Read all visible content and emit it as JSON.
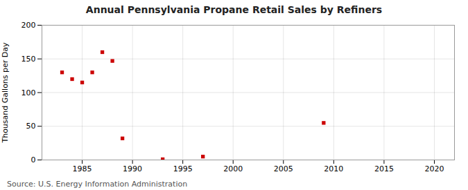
{
  "chart_data": {
    "type": "scatter",
    "title": "Annual Pennsylvania Propane Retail Sales by Refiners",
    "ylabel": "Thousand Gallons per Day",
    "source": "Source: U.S. Energy Information Administration",
    "x": [
      1983,
      1984,
      1985,
      1986,
      1987,
      1988,
      1989,
      1993,
      1997,
      2009
    ],
    "values": [
      130,
      120,
      115,
      130,
      160,
      147,
      32,
      1,
      5,
      55
    ],
    "color": "#cc0000",
    "marker": "square",
    "xlim": [
      1981,
      2022
    ],
    "ylim": [
      0,
      200
    ],
    "xticks": [
      1985,
      1990,
      1995,
      2000,
      2005,
      2010,
      2015,
      2020
    ],
    "yticks": [
      0,
      50,
      100,
      150,
      200
    ],
    "grid": true
  }
}
